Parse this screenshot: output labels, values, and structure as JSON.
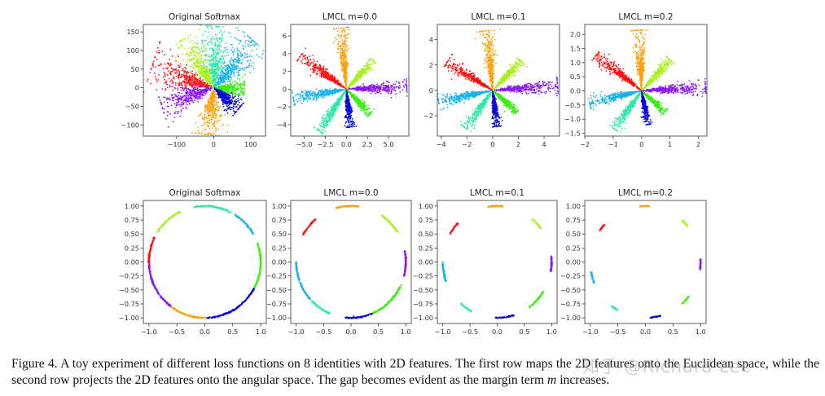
{
  "figure": {
    "caption_parts": [
      "Figure 4. A toy experiment of different loss functions on 8 identities with 2D features. The first row maps the 2D features onto the Euclidean space, while the second row projects the 2D features onto the angular space. The gap becomes evident as the margin term ",
      "m",
      " increases."
    ],
    "watermark": "知乎 @Richard Lee"
  },
  "colors": {
    "red": "#ff1010",
    "yellowgreen": "#a8f020",
    "teal": "#30e8a8",
    "lightblue": "#18b4ec",
    "green": "#38f010",
    "blue": "#0808d8",
    "orange": "#f8a410",
    "purple": "#8818f0"
  },
  "chart_data": [
    {
      "type": "scatter",
      "row": "euclidean",
      "title": "Original Softmax",
      "xlim": [
        -190,
        140
      ],
      "ylim": [
        -130,
        170
      ],
      "xticks": [
        -100,
        0,
        100
      ],
      "xtick_labels": [
        "−100",
        "0",
        "100"
      ],
      "yticks": [
        -100,
        -50,
        0,
        50,
        100,
        150
      ],
      "ytick_labels": [
        "−100",
        "−50",
        "0",
        "50",
        "100",
        "150"
      ],
      "clusters": [
        {
          "color": "red",
          "angle_deg": 162,
          "radius": 160
        },
        {
          "color": "yellowgreen",
          "angle_deg": 122,
          "radius": 140
        },
        {
          "color": "teal",
          "angle_deg": 86,
          "radius": 150
        },
        {
          "color": "lightblue",
          "angle_deg": 47,
          "radius": 150
        },
        {
          "color": "green",
          "angle_deg": -3,
          "radius": 75
        },
        {
          "color": "blue",
          "angle_deg": -40,
          "radius": 80
        },
        {
          "color": "orange",
          "angle_deg": -96,
          "radius": 115
        },
        {
          "color": "purple",
          "angle_deg": -162,
          "radius": 135
        }
      ]
    },
    {
      "type": "scatter",
      "row": "euclidean",
      "title": "LMCL m=0.0",
      "xlim": [
        -6.6,
        7.4
      ],
      "ylim": [
        -5.3,
        7.3
      ],
      "xticks": [
        -5,
        -2.5,
        0,
        2.5,
        5
      ],
      "xtick_labels": [
        "−5.0",
        "−2.5",
        "0.0",
        "2.5",
        "5.0"
      ],
      "yticks": [
        -4,
        -2,
        0,
        2,
        4,
        6
      ],
      "ytick_labels": [
        "−4",
        "−2",
        "0",
        "2",
        "4",
        "6"
      ],
      "clusters": [
        {
          "color": "orange",
          "angle_deg": 95,
          "radius": 6.3
        },
        {
          "color": "yellowgreen",
          "angle_deg": 45,
          "radius": 4.1
        },
        {
          "color": "purple",
          "angle_deg": 2,
          "radius": 6.5
        },
        {
          "color": "green",
          "angle_deg": -45,
          "radius": 3.6
        },
        {
          "color": "blue",
          "angle_deg": -84,
          "radius": 3.9
        },
        {
          "color": "teal",
          "angle_deg": -124,
          "radius": 5.2
        },
        {
          "color": "lightblue",
          "angle_deg": -170,
          "radius": 5.8
        },
        {
          "color": "red",
          "angle_deg": 146,
          "radius": 6.0
        }
      ]
    },
    {
      "type": "scatter",
      "row": "euclidean",
      "title": "LMCL m=0.1",
      "xlim": [
        -4.3,
        5.2
      ],
      "ylim": [
        -3.6,
        5.2
      ],
      "xticks": [
        -4,
        -2,
        0,
        2,
        4
      ],
      "xtick_labels": [
        "−4",
        "−2",
        "0",
        "2",
        "4"
      ],
      "yticks": [
        -2,
        0,
        2,
        4
      ],
      "ytick_labels": [
        "−2",
        "0",
        "2",
        "4"
      ],
      "clusters": [
        {
          "color": "orange",
          "angle_deg": 95,
          "radius": 4.3
        },
        {
          "color": "yellowgreen",
          "angle_deg": 46,
          "radius": 2.9
        },
        {
          "color": "purple",
          "angle_deg": 4,
          "radius": 4.6
        },
        {
          "color": "green",
          "angle_deg": -42,
          "radius": 2.3
        },
        {
          "color": "blue",
          "angle_deg": -83,
          "radius": 2.6
        },
        {
          "color": "teal",
          "angle_deg": -125,
          "radius": 3.3
        },
        {
          "color": "lightblue",
          "angle_deg": -168,
          "radius": 3.9
        },
        {
          "color": "red",
          "angle_deg": 148,
          "radius": 3.8
        }
      ]
    },
    {
      "type": "scatter",
      "row": "euclidean",
      "title": "LMCL m=0.2",
      "xlim": [
        -2.0,
        2.3
      ],
      "ylim": [
        -1.6,
        2.35
      ],
      "xticks": [
        -2,
        -1,
        0,
        1,
        2
      ],
      "xtick_labels": [
        "−2",
        "−1",
        "0",
        "1",
        "2"
      ],
      "yticks": [
        -1.5,
        -1,
        -0.5,
        0,
        0.5,
        1,
        1.5,
        2
      ],
      "ytick_labels": [
        "−1.5",
        "−1.0",
        "−0.5",
        "0.0",
        "0.5",
        "1.0",
        "1.5",
        "2.0"
      ],
      "clusters": [
        {
          "color": "orange",
          "angle_deg": 92,
          "radius": 1.95
        },
        {
          "color": "yellowgreen",
          "angle_deg": 47,
          "radius": 1.35
        },
        {
          "color": "purple",
          "angle_deg": 3,
          "radius": 2.05
        },
        {
          "color": "green",
          "angle_deg": -42,
          "radius": 1.0
        },
        {
          "color": "blue",
          "angle_deg": -80,
          "radius": 1.1
        },
        {
          "color": "teal",
          "angle_deg": -125,
          "radius": 1.5
        },
        {
          "color": "lightblue",
          "angle_deg": -167,
          "radius": 1.7
        },
        {
          "color": "red",
          "angle_deg": 142,
          "radius": 1.85
        }
      ]
    },
    {
      "type": "scatter",
      "row": "angular",
      "title": "Original Softmax",
      "xlim": [
        -1.1,
        1.1
      ],
      "ylim": [
        -1.1,
        1.1
      ],
      "xticks": [
        -1,
        -0.5,
        0,
        0.5,
        1
      ],
      "xtick_labels": [
        "−1.0",
        "−0.5",
        "0.0",
        "0.5",
        "1.0"
      ],
      "yticks": [
        -1,
        -0.75,
        -0.5,
        -0.25,
        0,
        0.25,
        0.5,
        0.75,
        1
      ],
      "ytick_labels": [
        "−1.00",
        "−0.75",
        "−0.50",
        "−0.25",
        "0.00",
        "0.25",
        "0.50",
        "0.75",
        "1.00"
      ],
      "arcs": [
        {
          "color": "teal",
          "from_deg": 62,
          "to_deg": 101
        },
        {
          "color": "lightblue",
          "from_deg": 30,
          "to_deg": 58
        },
        {
          "color": "green",
          "from_deg": -30,
          "to_deg": 20
        },
        {
          "color": "blue",
          "from_deg": -88,
          "to_deg": -28
        },
        {
          "color": "orange",
          "from_deg": -128,
          "to_deg": -88
        },
        {
          "color": "purple",
          "from_deg": -188,
          "to_deg": -128
        },
        {
          "color": "red",
          "from_deg": 154,
          "to_deg": 182
        },
        {
          "color": "yellowgreen",
          "from_deg": 116,
          "to_deg": 148
        }
      ]
    },
    {
      "type": "scatter",
      "row": "angular",
      "title": "LMCL m=0.0",
      "xlim": [
        -1.1,
        1.1
      ],
      "ylim": [
        -1.1,
        1.1
      ],
      "xticks": [
        -1,
        -0.5,
        0,
        0.5,
        1
      ],
      "xtick_labels": [
        "−1.0",
        "−0.5",
        "0.0",
        "0.5",
        "1.0"
      ],
      "yticks": [
        -1,
        -0.75,
        -0.5,
        -0.25,
        0,
        0.25,
        0.5,
        0.75,
        1
      ],
      "ytick_labels": [
        "−1.00",
        "−0.75",
        "−0.50",
        "−0.25",
        "0.00",
        "0.25",
        "0.50",
        "0.75",
        "1.00"
      ],
      "arcs": [
        {
          "color": "orange",
          "from_deg": 82,
          "to_deg": 106
        },
        {
          "color": "yellowgreen",
          "from_deg": 32,
          "to_deg": 56
        },
        {
          "color": "purple",
          "from_deg": -15,
          "to_deg": 12
        },
        {
          "color": "green",
          "from_deg": -66,
          "to_deg": -24
        },
        {
          "color": "blue",
          "from_deg": -96,
          "to_deg": -67
        },
        {
          "color": "teal",
          "from_deg": -136,
          "to_deg": -113
        },
        {
          "color": "lightblue",
          "from_deg": -180,
          "to_deg": -138
        },
        {
          "color": "red",
          "from_deg": 130,
          "to_deg": 151
        }
      ]
    },
    {
      "type": "scatter",
      "row": "angular",
      "title": "LMCL m=0.1",
      "xlim": [
        -1.1,
        1.1
      ],
      "ylim": [
        -1.1,
        1.1
      ],
      "xticks": [
        -1,
        -0.5,
        0,
        0.5,
        1
      ],
      "xtick_labels": [
        "−1.0",
        "−0.5",
        "0.0",
        "0.5",
        "1.0"
      ],
      "yticks": [
        -1,
        -0.75,
        -0.5,
        -0.25,
        0,
        0.25,
        0.5,
        0.75,
        1
      ],
      "ytick_labels": [
        "−1.00",
        "−0.75",
        "−0.50",
        "−0.25",
        "0.00",
        "0.25",
        "0.50",
        "0.75",
        "1.00"
      ],
      "arcs": [
        {
          "color": "orange",
          "from_deg": 84,
          "to_deg": 100
        },
        {
          "color": "yellowgreen",
          "from_deg": 36,
          "to_deg": 50
        },
        {
          "color": "purple",
          "from_deg": -10,
          "to_deg": 6
        },
        {
          "color": "green",
          "from_deg": -54,
          "to_deg": -32
        },
        {
          "color": "blue",
          "from_deg": -92,
          "to_deg": -72
        },
        {
          "color": "teal",
          "from_deg": -132,
          "to_deg": -118
        },
        {
          "color": "lightblue",
          "from_deg": -180,
          "to_deg": -160
        },
        {
          "color": "red",
          "from_deg": 136,
          "to_deg": 150
        }
      ]
    },
    {
      "type": "scatter",
      "row": "angular",
      "title": "LMCL m=0.2",
      "xlim": [
        -1.1,
        1.1
      ],
      "ylim": [
        -1.1,
        1.1
      ],
      "xticks": [
        -1,
        -0.5,
        0,
        0.5,
        1
      ],
      "xtick_labels": [
        "−1.0",
        "−0.5",
        "0.0",
        "0.5",
        "1.0"
      ],
      "yticks": [
        -1,
        -0.75,
        -0.5,
        -0.25,
        0,
        0.25,
        0.5,
        0.75,
        1
      ],
      "ytick_labels": [
        "−1.00",
        "−0.75",
        "−0.50",
        "−0.25",
        "0.00",
        "0.25",
        "0.50",
        "0.75",
        "1.00"
      ],
      "arcs": [
        {
          "color": "orange",
          "from_deg": 86,
          "to_deg": 96
        },
        {
          "color": "yellowgreen",
          "from_deg": 40,
          "to_deg": 48
        },
        {
          "color": "purple",
          "from_deg": -8,
          "to_deg": 3
        },
        {
          "color": "green",
          "from_deg": -48,
          "to_deg": -38
        },
        {
          "color": "blue",
          "from_deg": -85,
          "to_deg": -74
        },
        {
          "color": "teal",
          "from_deg": -128,
          "to_deg": -120
        },
        {
          "color": "lightblue",
          "from_deg": -170,
          "to_deg": -158
        },
        {
          "color": "red",
          "from_deg": 138,
          "to_deg": 146
        }
      ]
    }
  ]
}
